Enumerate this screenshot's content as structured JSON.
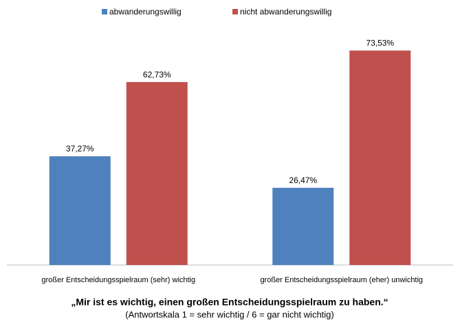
{
  "chart_data": {
    "type": "bar",
    "title": "„Mir ist es wichtig, einen großen Entscheidungsspielraum zu haben.“",
    "subtitle": "(Antwortskala 1 = sehr wichtig / 6 = gar nicht wichtig)",
    "categories": [
      "großer Entscheidungsspielraum (sehr) wichtig",
      "großer Entscheidungsspielraum (eher) unwichtig"
    ],
    "series": [
      {
        "name": "abwanderungswillig",
        "color": "#4f81bd",
        "values": [
          37.27,
          26.47
        ],
        "value_labels": [
          "37,27%",
          "26,47%"
        ]
      },
      {
        "name": "nicht abwanderungswillig",
        "color": "#c0504d",
        "values": [
          62.73,
          73.53
        ],
        "value_labels": [
          "62,73%",
          "73,53%"
        ]
      }
    ],
    "ylim": [
      0,
      80
    ],
    "legend": "top"
  }
}
